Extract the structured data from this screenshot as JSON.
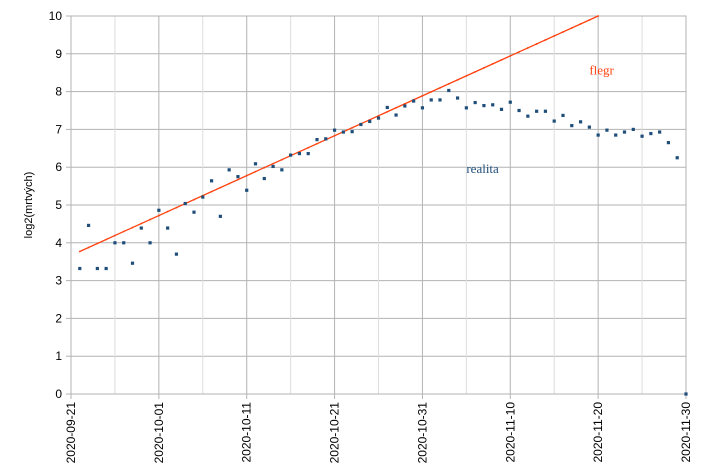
{
  "chart_data": {
    "type": "scatter",
    "xlabel": "",
    "ylabel": "log2(mrtvých)",
    "ylim": [
      0,
      10
    ],
    "yticks": [
      "0",
      "1",
      "2",
      "3",
      "4",
      "5",
      "6",
      "7",
      "8",
      "9",
      "10"
    ],
    "xlim": [
      "2020-09-21",
      "2020-11-30"
    ],
    "xticks": [
      "2020-09-21",
      "2020-10-01",
      "2020-10-11",
      "2020-10-21",
      "2020-10-31",
      "2020-11-10",
      "2020-11-20",
      "2020-11-30"
    ],
    "grid": true,
    "legend": "none",
    "colors": {
      "realita": "#1f4e79",
      "flegr": "#ff420e",
      "grid": "#b3b3b3",
      "axis": "#b3b3b3"
    },
    "annotations": {
      "flegr": "flegr",
      "realita": "realita"
    },
    "series": [
      {
        "key": "flegr",
        "mark": "line",
        "x": [
          "2020-09-22",
          "2020-11-20"
        ],
        "y": [
          3.77,
          10.0
        ]
      },
      {
        "key": "realita",
        "mark": "point",
        "x": [
          "2020-09-22",
          "2020-09-23",
          "2020-09-24",
          "2020-09-25",
          "2020-09-26",
          "2020-09-27",
          "2020-09-28",
          "2020-09-29",
          "2020-09-30",
          "2020-10-01",
          "2020-10-02",
          "2020-10-03",
          "2020-10-04",
          "2020-10-05",
          "2020-10-06",
          "2020-10-07",
          "2020-10-08",
          "2020-10-09",
          "2020-10-10",
          "2020-10-11",
          "2020-10-12",
          "2020-10-13",
          "2020-10-14",
          "2020-10-15",
          "2020-10-16",
          "2020-10-17",
          "2020-10-18",
          "2020-10-19",
          "2020-10-20",
          "2020-10-21",
          "2020-10-22",
          "2020-10-23",
          "2020-10-24",
          "2020-10-25",
          "2020-10-26",
          "2020-10-27",
          "2020-10-28",
          "2020-10-29",
          "2020-10-30",
          "2020-10-31",
          "2020-11-01",
          "2020-11-02",
          "2020-11-03",
          "2020-11-04",
          "2020-11-05",
          "2020-11-06",
          "2020-11-07",
          "2020-11-08",
          "2020-11-09",
          "2020-11-10",
          "2020-11-11",
          "2020-11-12",
          "2020-11-13",
          "2020-11-14",
          "2020-11-15",
          "2020-11-16",
          "2020-11-17",
          "2020-11-18",
          "2020-11-19",
          "2020-11-20",
          "2020-11-21",
          "2020-11-22",
          "2020-11-23",
          "2020-11-24",
          "2020-11-25",
          "2020-11-26",
          "2020-11-27",
          "2020-11-28",
          "2020-11-29",
          "2020-11-30"
        ],
        "y": [
          3.32,
          4.46,
          3.32,
          3.32,
          4.0,
          4.0,
          3.46,
          4.39,
          4.0,
          4.86,
          4.39,
          3.7,
          5.04,
          4.81,
          5.21,
          5.64,
          4.7,
          5.93,
          5.75,
          5.39,
          6.09,
          5.7,
          6.02,
          5.93,
          6.32,
          6.36,
          6.36,
          6.73,
          6.75,
          6.98,
          6.93,
          6.94,
          7.13,
          7.21,
          7.3,
          7.58,
          7.38,
          7.62,
          7.75,
          7.57,
          7.78,
          7.78,
          8.03,
          7.83,
          7.57,
          7.71,
          7.63,
          7.65,
          7.53,
          7.72,
          7.5,
          7.35,
          7.48,
          7.48,
          7.22,
          7.37,
          7.1,
          7.2,
          7.06,
          6.85,
          6.98,
          6.85,
          6.93,
          7.0,
          6.82,
          6.89,
          6.93,
          6.65,
          6.25,
          0.0
        ]
      }
    ]
  }
}
